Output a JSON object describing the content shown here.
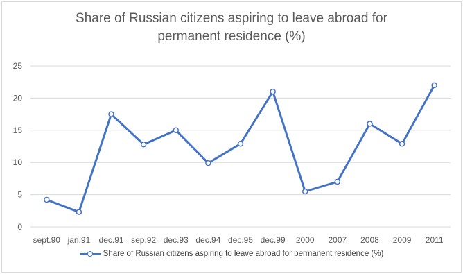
{
  "chart_data": {
    "type": "line",
    "title": "Share of Russian citizens aspiring to leave abroad for permanent residence (%)",
    "title_lines": [
      "Share of Russian citizens aspiring to leave abroad for",
      "permanent residence (%)"
    ],
    "categories": [
      "sept.90",
      "jan.91",
      "dec.91",
      "sep.92",
      "dec.93",
      "dec.94",
      "dec.95",
      "dec.99",
      "2000",
      "2007",
      "2008",
      "2009",
      "2011"
    ],
    "series": [
      {
        "name": "Share of Russian citizens aspiring to leave abroad for permanent residence (%)",
        "values": [
          4.2,
          2.3,
          17.5,
          12.8,
          15,
          9.9,
          12.9,
          21,
          5.5,
          7,
          16,
          12.9,
          22
        ],
        "color": "#4472c4"
      }
    ],
    "ylim": [
      0,
      25
    ],
    "yticks": [
      0,
      5,
      10,
      15,
      20,
      25
    ],
    "grid": true,
    "legend": "bottom",
    "gridline_color": "#d9d9d9",
    "text_color": "#595959"
  }
}
